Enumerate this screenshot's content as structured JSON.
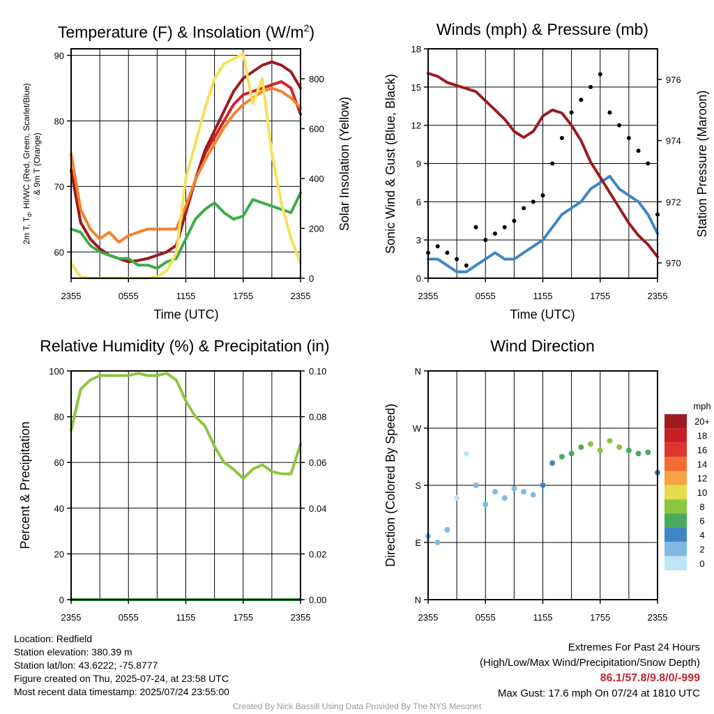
{
  "panels": {
    "temp": {
      "title": "Temperature (F) & Insolation (W/m",
      "title_sup": "2",
      "title_end": ")",
      "xlabel": "Time (UTC)",
      "ylabel_lines": [
        "2m T, T",
        "d",
        ", HI/WC (Red, Green, Scarlet/Blue)",
        "& 9m T (Orange)"
      ],
      "ylabel_right": "Solar Insolation (Yellow)"
    },
    "wind": {
      "title": "Winds (mph) & Pressure (mb)",
      "xlabel": "Time (UTC)",
      "ylabel": "Sonic Wind & Gust (Blue, Black)",
      "ylabel_right": "Station Pressure (Maroon)"
    },
    "rh": {
      "title": "Relative Humidity (%) & Precipitation (in)",
      "ylabel": "Percent & Precipitation"
    },
    "dir": {
      "title": "Wind Direction",
      "ylabel": "Direction (Colored By Speed)",
      "colorbar_unit": "mph",
      "colorbar_labels": [
        "20+",
        "18",
        "16",
        "14",
        "12",
        "10",
        "8",
        "6",
        "4",
        "2",
        "0"
      ],
      "colorbar_colors": [
        "#a11a1f",
        "#c62026",
        "#e0362c",
        "#f26b30",
        "#f8a342",
        "#e6dc4c",
        "#8cc63e",
        "#4aaa5c",
        "#3f86c4",
        "#80b9e2",
        "#bfe4f6"
      ]
    }
  },
  "info": {
    "location": "Location: Redfield",
    "elevation": "Station elevation: 380.39 m",
    "latlon": "Station lat/lon: 43.6222; -75.8777",
    "created": "Figure created on Thu, 2025-07-24, at 23:58 UTC",
    "recent": "Most recent data timestamp: 2025/07/24 23:55:00",
    "extremes_title": "Extremes For Past 24 Hours",
    "extremes_desc": "(High/Low/Max Wind/Precipitation/Snow Depth)",
    "extremes_values": "86.1/57.8/9.8/0/-999",
    "max_gust": "Max Gust: 17.6 mph On 07/24 at 1810 UTC",
    "credit": "Created By Nick Bassill Using Data Provided By The NYS Mesonet"
  },
  "chart_data": [
    {
      "type": "line",
      "title": "Temperature (F) & Insolation (W/m2)",
      "xlabel": "Time (UTC)",
      "ylabel": "2m T, Td, HI/WC (Red, Green, Scarlet/Blue) & 9m T (Orange)",
      "ylabel_right": "Solar Insolation (Yellow)",
      "x_ticks": [
        "2355",
        "0555",
        "1155",
        "1755",
        "2355"
      ],
      "y_ticks": [
        60,
        70,
        80,
        90
      ],
      "y2_ticks": [
        0,
        200,
        400,
        600,
        800
      ],
      "ylim": [
        56,
        91
      ],
      "y2lim": [
        0,
        920
      ],
      "x": [
        0,
        1,
        2,
        3,
        4,
        5,
        6,
        7,
        8,
        9,
        10,
        11,
        12,
        13,
        14,
        15,
        16,
        17,
        18,
        19,
        20,
        21,
        22,
        23,
        24
      ],
      "series": [
        {
          "name": "2m T",
          "color": "#d42027",
          "axis": "left",
          "values": [
            72.5,
            64.5,
            62.0,
            60.5,
            59.5,
            59.0,
            58.5,
            58.7,
            59.0,
            59.5,
            60.0,
            61.0,
            66.0,
            71.0,
            75.0,
            77.5,
            80.0,
            82.5,
            84.0,
            84.5,
            85.0,
            85.5,
            86.0,
            85.0,
            81.0
          ]
        },
        {
          "name": "HI/WC",
          "color": "#9b1b1f",
          "axis": "left",
          "values": [
            72.5,
            64.5,
            62.0,
            60.5,
            59.5,
            59.0,
            58.5,
            58.7,
            59.0,
            59.5,
            60.0,
            61.0,
            66.0,
            71.0,
            75.5,
            78.5,
            81.5,
            84.5,
            86.5,
            87.5,
            88.5,
            89.0,
            88.5,
            87.5,
            85.0
          ]
        },
        {
          "name": "9m T",
          "color": "#f5812b",
          "axis": "left",
          "values": [
            75.0,
            66.5,
            63.5,
            62.0,
            63.0,
            61.5,
            62.5,
            63.0,
            63.5,
            63.5,
            63.5,
            63.5,
            67.0,
            71.0,
            74.0,
            76.5,
            79.0,
            81.0,
            82.5,
            83.5,
            84.5,
            85.0,
            84.5,
            83.5,
            82.0
          ]
        },
        {
          "name": "Td",
          "color": "#3aad48",
          "axis": "left",
          "values": [
            63.5,
            63.0,
            61.0,
            60.0,
            59.5,
            59.0,
            59.0,
            58.0,
            58.0,
            57.5,
            58.5,
            59.0,
            62.0,
            65.0,
            66.5,
            67.5,
            66.0,
            65.0,
            65.5,
            68.0,
            67.5,
            67.0,
            66.5,
            66.0,
            69.0
          ]
        },
        {
          "name": "Solar Insolation",
          "color": "#f7e05a",
          "axis": "right",
          "values": [
            60,
            5,
            0,
            0,
            0,
            0,
            0,
            0,
            0,
            5,
            30,
            100,
            400,
            540,
            680,
            800,
            860,
            880,
            900,
            700,
            800,
            500,
            300,
            160,
            60
          ]
        }
      ]
    },
    {
      "type": "line",
      "title": "Winds (mph) & Pressure (mb)",
      "xlabel": "Time (UTC)",
      "ylabel": "Sonic Wind & Gust (Blue, Black)",
      "ylabel_right": "Station Pressure (Maroon)",
      "x_ticks": [
        "2355",
        "0555",
        "1155",
        "1755",
        "2355"
      ],
      "y_ticks": [
        0,
        3,
        6,
        9,
        12,
        15,
        18
      ],
      "y2_ticks": [
        970,
        972,
        974,
        976
      ],
      "ylim": [
        0,
        18
      ],
      "y2lim": [
        969.5,
        977.0
      ],
      "x": [
        0,
        1,
        2,
        3,
        4,
        5,
        6,
        7,
        8,
        9,
        10,
        11,
        12,
        13,
        14,
        15,
        16,
        17,
        18,
        19,
        20,
        21,
        22,
        23,
        24
      ],
      "series": [
        {
          "name": "Sonic Wind",
          "color": "#3f86c4",
          "axis": "left",
          "values": [
            1.5,
            1.5,
            1.0,
            0.5,
            0.5,
            1.0,
            1.5,
            2.0,
            1.5,
            1.5,
            2.0,
            2.5,
            3.0,
            4.0,
            5.0,
            5.5,
            6.0,
            7.0,
            7.5,
            8.0,
            7.0,
            6.5,
            6.0,
            5.0,
            3.5
          ]
        },
        {
          "name": "Gust",
          "color": "#000000",
          "axis": "left",
          "values": [
            2.0,
            2.5,
            2.0,
            1.5,
            1.0,
            4.0,
            3.0,
            3.5,
            4.0,
            4.5,
            5.5,
            6.0,
            6.5,
            9.0,
            11.0,
            13.0,
            14.0,
            15.0,
            16.0,
            13.0,
            12.0,
            11.0,
            10.0,
            9.0,
            5.0
          ]
        },
        {
          "name": "Station Pressure",
          "color": "#9b1b1f",
          "axis": "right",
          "values": [
            976.2,
            976.1,
            975.9,
            975.8,
            975.7,
            975.6,
            975.3,
            975.0,
            974.7,
            974.3,
            974.1,
            974.3,
            974.8,
            975.0,
            974.9,
            974.5,
            974.0,
            973.3,
            972.8,
            972.3,
            971.8,
            971.3,
            970.9,
            970.6,
            970.2
          ]
        }
      ]
    },
    {
      "type": "line",
      "title": "Relative Humidity (%) & Precipitation (in)",
      "ylabel": "Percent & Precipitation",
      "x_ticks": [
        "2355",
        "0555",
        "1155",
        "1755",
        "2355"
      ],
      "y_ticks": [
        0,
        20,
        40,
        60,
        80,
        100
      ],
      "y2_ticks": [
        "0.00",
        "0.02",
        "0.04",
        "0.06",
        "0.08",
        "0.10"
      ],
      "ylim": [
        0,
        100
      ],
      "y2lim": [
        0,
        0.1
      ],
      "x": [
        0,
        1,
        2,
        3,
        4,
        5,
        6,
        7,
        8,
        9,
        10,
        11,
        12,
        13,
        14,
        15,
        16,
        17,
        18,
        19,
        20,
        21,
        22,
        23,
        24
      ],
      "series": [
        {
          "name": "Relative Humidity",
          "color": "#8cc63e",
          "axis": "left",
          "values": [
            74,
            92,
            96,
            98,
            98,
            98,
            98,
            99,
            98,
            98,
            99,
            96,
            87,
            80,
            76,
            67,
            60,
            57,
            53,
            57,
            59,
            56,
            55,
            55,
            68
          ]
        },
        {
          "name": "Precipitation",
          "color": "#2e9a3f",
          "axis": "right",
          "values": [
            0,
            0,
            0,
            0,
            0,
            0,
            0,
            0,
            0,
            0,
            0,
            0,
            0,
            0,
            0,
            0,
            0,
            0,
            0,
            0,
            0,
            0,
            0,
            0,
            0
          ]
        }
      ]
    },
    {
      "type": "scatter",
      "title": "Wind Direction",
      "ylabel": "Direction (Colored By Speed)",
      "x_ticks": [
        "2355",
        "0555",
        "1155",
        "1755",
        "2355"
      ],
      "y_ticks": [
        "N",
        "E",
        "S",
        "W",
        "N"
      ],
      "ylim": [
        0,
        360
      ],
      "colorbar_label": "mph",
      "x": [
        0,
        1,
        2,
        3,
        4,
        5,
        6,
        7,
        8,
        9,
        10,
        11,
        12,
        13,
        14,
        15,
        16,
        17,
        18,
        19,
        20,
        21,
        22,
        23,
        24
      ],
      "series": [
        {
          "name": "direction",
          "values": [
            100,
            90,
            110,
            160,
            230,
            180,
            150,
            170,
            160,
            175,
            170,
            165,
            180,
            215,
            225,
            230,
            240,
            245,
            235,
            250,
            240,
            235,
            230,
            232,
            200
          ],
          "speeds": [
            1.5,
            1.5,
            1.0,
            0.5,
            0.5,
            1.0,
            1.5,
            2.0,
            1.5,
            1.5,
            2.0,
            2.5,
            3.0,
            4.0,
            5.0,
            5.5,
            6.0,
            7.0,
            7.5,
            8.0,
            7.0,
            6.5,
            6.0,
            5.0,
            3.5
          ]
        }
      ]
    }
  ]
}
